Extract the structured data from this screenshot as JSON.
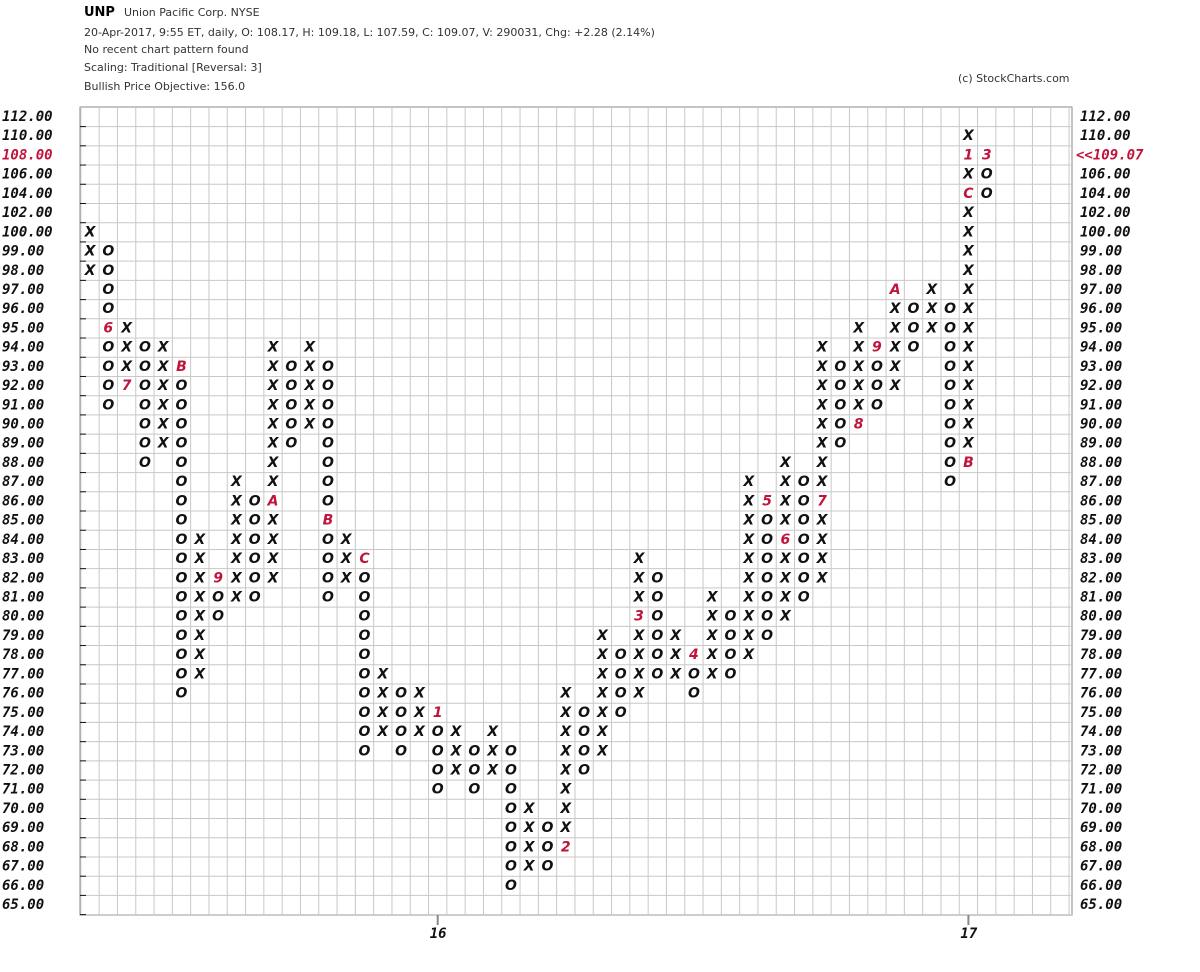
{
  "chart_data": {
    "type": "point_and_figure",
    "symbol": "UNP",
    "title": "Union Pacific Corp. NYSE",
    "subtitle": [
      "20-Apr-2017, 9:55 ET, daily, O: 108.17, H: 109.18, L: 107.59, C: 109.07, V: 290031, Chg: +2.28 (2.14%)",
      "No recent chart pattern found",
      "Scaling: Traditional [Reversal: 3]",
      "Bullish Price Objective: 156.0"
    ],
    "credit": "(c) StockCharts.com",
    "box_color": "#111111",
    "month_color": "#c0143c",
    "last_price": {
      "value": 109.07,
      "label": "<<109.07"
    },
    "yticks": [
      {
        "value": 112,
        "label": "112.00"
      },
      {
        "value": 110,
        "label": "110.00"
      },
      {
        "value": 108,
        "label": "108.00"
      },
      {
        "value": 106,
        "label": "106.00"
      },
      {
        "value": 104,
        "label": "104.00"
      },
      {
        "value": 102,
        "label": "102.00"
      },
      {
        "value": 100,
        "label": "100.00"
      },
      {
        "value": 99,
        "label": "99.00"
      },
      {
        "value": 98,
        "label": "98.00"
      },
      {
        "value": 97,
        "label": "97.00"
      },
      {
        "value": 96,
        "label": "96.00"
      },
      {
        "value": 95,
        "label": "95.00"
      },
      {
        "value": 94,
        "label": "94.00"
      },
      {
        "value": 93,
        "label": "93.00"
      },
      {
        "value": 92,
        "label": "92.00"
      },
      {
        "value": 91,
        "label": "91.00"
      },
      {
        "value": 90,
        "label": "90.00"
      },
      {
        "value": 89,
        "label": "89.00"
      },
      {
        "value": 88,
        "label": "88.00"
      },
      {
        "value": 87,
        "label": "87.00"
      },
      {
        "value": 86,
        "label": "86.00"
      },
      {
        "value": 85,
        "label": "85.00"
      },
      {
        "value": 84,
        "label": "84.00"
      },
      {
        "value": 83,
        "label": "83.00"
      },
      {
        "value": 82,
        "label": "82.00"
      },
      {
        "value": 81,
        "label": "81.00"
      },
      {
        "value": 80,
        "label": "80.00"
      },
      {
        "value": 79,
        "label": "79.00"
      },
      {
        "value": 78,
        "label": "78.00"
      },
      {
        "value": 77,
        "label": "77.00"
      },
      {
        "value": 76,
        "label": "76.00"
      },
      {
        "value": 75,
        "label": "75.00"
      },
      {
        "value": 74,
        "label": "74.00"
      },
      {
        "value": 73,
        "label": "73.00"
      },
      {
        "value": 72,
        "label": "72.00"
      },
      {
        "value": 71,
        "label": "71.00"
      },
      {
        "value": 70,
        "label": "70.00"
      },
      {
        "value": 69,
        "label": "69.00"
      },
      {
        "value": 68,
        "label": "68.00"
      },
      {
        "value": 67,
        "label": "67.00"
      },
      {
        "value": 66,
        "label": "66.00"
      },
      {
        "value": 65,
        "label": "65.00"
      }
    ],
    "columns": [
      {
        "box": "X",
        "low": 98,
        "high": 100
      },
      {
        "box": "O",
        "low": 91,
        "high": 99,
        "months": [
          {
            "at": 95,
            "label": "6"
          }
        ]
      },
      {
        "box": "X",
        "low": 92,
        "high": 95,
        "months": [
          {
            "at": 92,
            "label": "7"
          }
        ]
      },
      {
        "box": "O",
        "low": 88,
        "high": 94
      },
      {
        "box": "X",
        "low": 89,
        "high": 94
      },
      {
        "box": "O",
        "low": 76,
        "high": 93,
        "months": [
          {
            "at": 93,
            "label": "B"
          }
        ]
      },
      {
        "box": "X",
        "low": 77,
        "high": 84
      },
      {
        "box": "O",
        "low": 80,
        "high": 82,
        "months": [
          {
            "at": 82,
            "label": "9"
          }
        ]
      },
      {
        "box": "X",
        "low": 81,
        "high": 87
      },
      {
        "box": "O",
        "low": 81,
        "high": 86
      },
      {
        "box": "X",
        "low": 82,
        "high": 94,
        "months": [
          {
            "at": 86,
            "label": "A"
          }
        ]
      },
      {
        "box": "O",
        "low": 89,
        "high": 93
      },
      {
        "box": "X",
        "low": 90,
        "high": 94
      },
      {
        "box": "O",
        "low": 81,
        "high": 93,
        "months": [
          {
            "at": 85,
            "label": "B"
          }
        ]
      },
      {
        "box": "X",
        "low": 82,
        "high": 84
      },
      {
        "box": "O",
        "low": 73,
        "high": 83,
        "months": [
          {
            "at": 83,
            "label": "C"
          }
        ]
      },
      {
        "box": "X",
        "low": 74,
        "high": 77
      },
      {
        "box": "O",
        "low": 73,
        "high": 76
      },
      {
        "box": "X",
        "low": 74,
        "high": 76
      },
      {
        "box": "O",
        "low": 71,
        "high": 75,
        "months": [
          {
            "at": 75,
            "label": "1"
          }
        ],
        "year": "16"
      },
      {
        "box": "X",
        "low": 72,
        "high": 74
      },
      {
        "box": "O",
        "low": 71,
        "high": 73
      },
      {
        "box": "X",
        "low": 72,
        "high": 74
      },
      {
        "box": "O",
        "low": 66,
        "high": 73
      },
      {
        "box": "X",
        "low": 67,
        "high": 70
      },
      {
        "box": "O",
        "low": 67,
        "high": 69
      },
      {
        "box": "X",
        "low": 68,
        "high": 76,
        "months": [
          {
            "at": 68,
            "label": "2"
          }
        ]
      },
      {
        "box": "O",
        "low": 72,
        "high": 75
      },
      {
        "box": "X",
        "low": 73,
        "high": 79
      },
      {
        "box": "O",
        "low": 75,
        "high": 78
      },
      {
        "box": "X",
        "low": 76,
        "high": 83,
        "months": [
          {
            "at": 80,
            "label": "3"
          }
        ]
      },
      {
        "box": "O",
        "low": 77,
        "high": 82
      },
      {
        "box": "X",
        "low": 77,
        "high": 79
      },
      {
        "box": "O",
        "low": 76,
        "high": 78,
        "months": [
          {
            "at": 78,
            "label": "4"
          }
        ]
      },
      {
        "box": "X",
        "low": 77,
        "high": 81
      },
      {
        "box": "O",
        "low": 77,
        "high": 80
      },
      {
        "box": "X",
        "low": 78,
        "high": 87
      },
      {
        "box": "O",
        "low": 79,
        "high": 86,
        "months": [
          {
            "at": 86,
            "label": "5"
          }
        ]
      },
      {
        "box": "X",
        "low": 80,
        "high": 88,
        "months": [
          {
            "at": 84,
            "label": "6"
          }
        ]
      },
      {
        "box": "O",
        "low": 81,
        "high": 87
      },
      {
        "box": "X",
        "low": 82,
        "high": 94,
        "months": [
          {
            "at": 86,
            "label": "7"
          }
        ]
      },
      {
        "box": "O",
        "low": 89,
        "high": 93
      },
      {
        "box": "X",
        "low": 90,
        "high": 95,
        "months": [
          {
            "at": 90,
            "label": "8"
          }
        ]
      },
      {
        "box": "O",
        "low": 91,
        "high": 94,
        "months": [
          {
            "at": 94,
            "label": "9"
          }
        ]
      },
      {
        "box": "X",
        "low": 92,
        "high": 97,
        "months": [
          {
            "at": 97,
            "label": "A"
          }
        ]
      },
      {
        "box": "O",
        "low": 94,
        "high": 96
      },
      {
        "box": "X",
        "low": 95,
        "high": 97
      },
      {
        "box": "O",
        "low": 87,
        "high": 96
      },
      {
        "box": "X",
        "low": 88,
        "high": 110,
        "months": [
          {
            "at": 88,
            "label": "B"
          },
          {
            "at": 104,
            "label": "C"
          },
          {
            "at": 108,
            "label": "1"
          }
        ],
        "year": "17"
      },
      {
        "box": "O",
        "low": 104,
        "high": 108,
        "months": [
          {
            "at": 108,
            "label": "3"
          }
        ]
      }
    ]
  }
}
